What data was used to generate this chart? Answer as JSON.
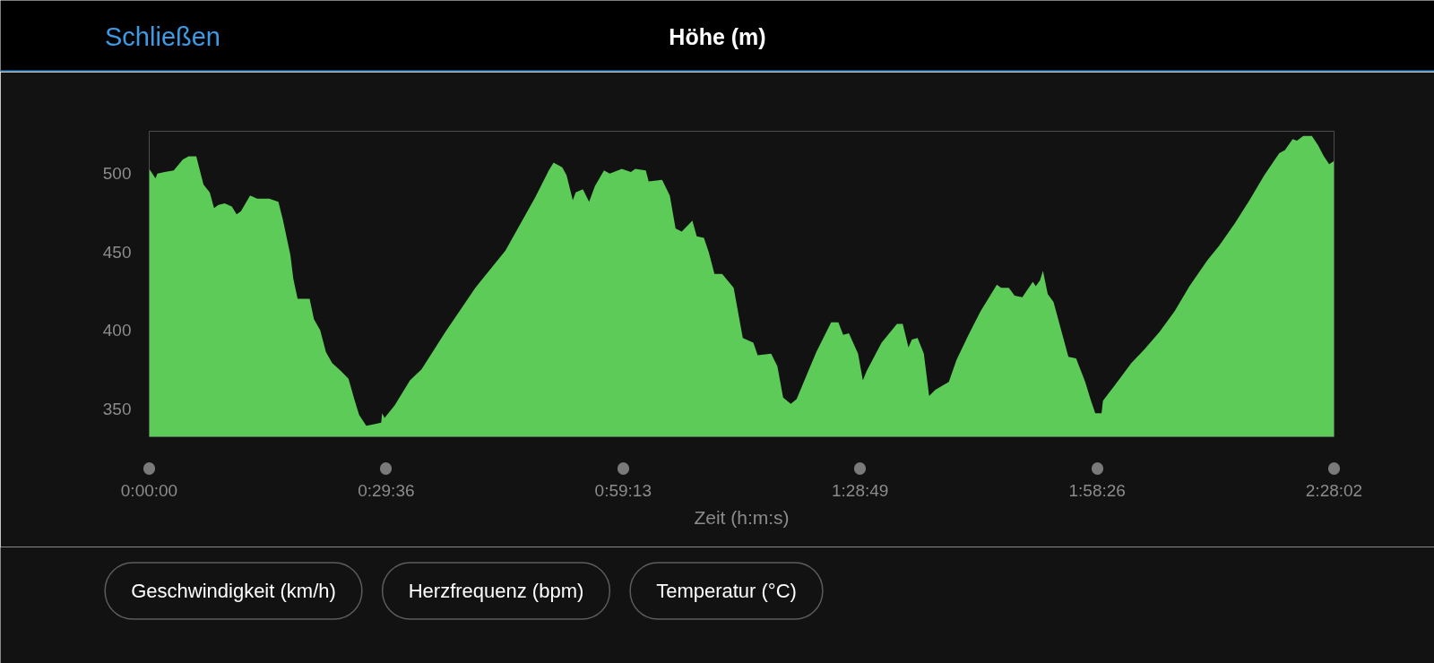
{
  "chart_data": {
    "type": "area",
    "title": "Höhe (m)",
    "xlabel": "Zeit (h:m:s)",
    "annotations": [
      "Schließen",
      "Geschwindigkeit (km/h)",
      "Herzfrequenz (bpm)",
      "Temperatur (°C)"
    ],
    "x": [
      0,
      0.013,
      0.017,
      0.032,
      0.051,
      0.07,
      0.082,
      0.098,
      0.113,
      0.126,
      0.135,
      0.144,
      0.157,
      0.172,
      0.182,
      0.191,
      0.21,
      0.225,
      0.25,
      0.269,
      0.278,
      0.294,
      0.3,
      0.309,
      0.334,
      0.343,
      0.356,
      0.368,
      0.381,
      0.399,
      0.415,
      0.427,
      0.437,
      0.452,
      0.468,
      0.483,
      0.485,
      0.49,
      0.511,
      0.543,
      0.567,
      0.617,
      0.679,
      0.742,
      0.773,
      0.804,
      0.832,
      0.842,
      0.86,
      0.869,
      0.882,
      0.888,
      0.903,
      0.916,
      0.928,
      0.947,
      0.959,
      0.984,
      1.003,
      1.012,
      1.034,
      1.04,
      1.068,
      1.084,
      1.096,
      1.109,
      1.131,
      1.14,
      1.155,
      1.165,
      1.177,
      1.193,
      1.217,
      1.236,
      1.258,
      1.267,
      1.295,
      1.308,
      1.32,
      1.336,
      1.348,
      1.389,
      1.42,
      1.435,
      1.445,
      1.457,
      1.476,
      1.486,
      1.494,
      1.525,
      1.557,
      1.569,
      1.581,
      1.588,
      1.6,
      1.613,
      1.624,
      1.637,
      1.665,
      1.681,
      1.706,
      1.731,
      1.765,
      1.774,
      1.79,
      1.802,
      1.818,
      1.84,
      1.846,
      1.855,
      1.861,
      1.871,
      1.883,
      1.914,
      1.93,
      1.949,
      1.961,
      1.97,
      1.983,
      1.986,
      2.011,
      2.045,
      2.073,
      2.104,
      2.135,
      2.166,
      2.204,
      2.228,
      2.26,
      2.291,
      2.322,
      2.353,
      2.365,
      2.381,
      2.39,
      2.403,
      2.421,
      2.434,
      2.446,
      2.457,
      2.467
    ],
    "series": [
      {
        "color": "#5dcb57",
        "values": [
          503,
          497,
          500,
          501,
          502,
          509,
          511,
          511,
          493,
          488,
          478,
          480,
          481,
          479,
          474,
          476,
          486,
          484,
          484,
          482,
          471,
          448,
          433,
          420,
          420,
          407,
          400,
          386,
          379,
          374,
          369,
          356,
          346,
          339,
          340,
          341,
          347,
          344,
          352,
          368,
          375,
          399,
          427,
          451,
          468,
          485,
          502,
          507,
          504,
          499,
          483,
          488,
          490,
          482,
          492,
          502,
          500,
          503,
          501,
          503,
          502,
          495,
          496,
          486,
          465,
          463,
          470,
          460,
          459,
          450,
          436,
          436,
          427,
          395,
          392,
          384,
          385,
          377,
          357,
          353,
          356,
          386,
          405,
          405,
          397,
          398,
          385,
          368,
          374,
          392,
          404,
          404,
          389,
          394,
          395,
          385,
          358,
          362,
          367,
          381,
          397,
          412,
          429,
          427,
          427,
          422,
          421,
          431,
          428,
          432,
          438,
          423,
          418,
          383,
          382,
          367,
          355,
          347,
          347,
          355,
          365,
          379,
          388,
          399,
          412,
          428,
          445,
          454,
          468,
          483,
          499,
          513,
          515,
          522,
          521,
          524,
          524,
          518,
          511,
          506,
          508
        ]
      }
    ],
    "xlim": [
      0,
      2.4672
    ],
    "ylim": [
      332,
      527
    ],
    "xticks": [
      {
        "value": 0,
        "label": "0:00:00"
      },
      {
        "value": 0.4933,
        "label": "0:29:36"
      },
      {
        "value": 0.9869,
        "label": "0:59:13"
      },
      {
        "value": 1.4803,
        "label": "1:28:49"
      },
      {
        "value": 1.9739,
        "label": "1:58:26"
      },
      {
        "value": 2.4672,
        "label": "2:28:02"
      }
    ],
    "yticks": [
      350,
      400,
      450,
      500
    ]
  }
}
